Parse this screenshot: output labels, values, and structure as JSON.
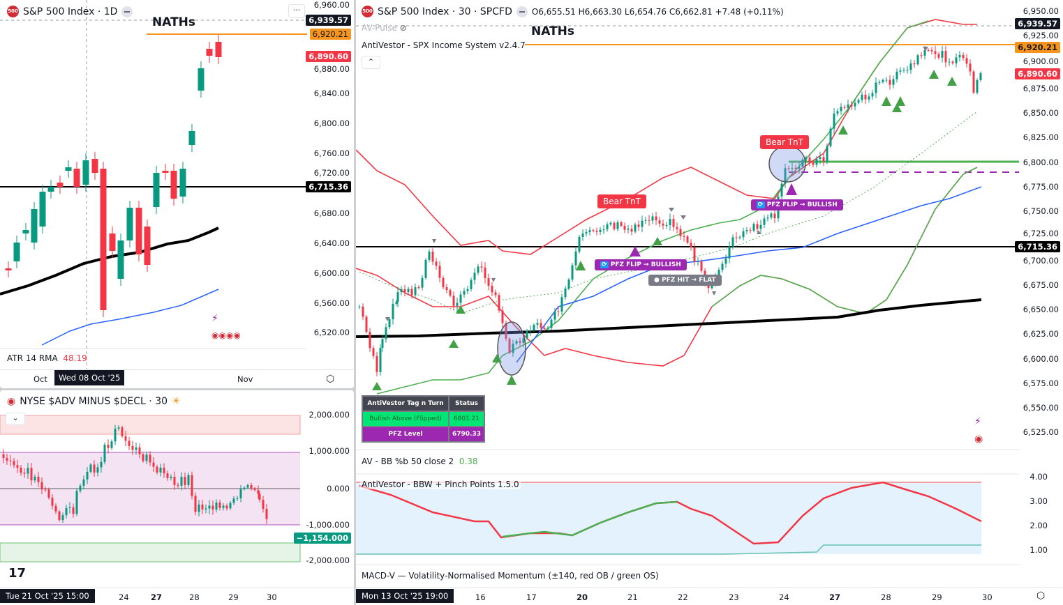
{
  "left_chart": {
    "title": "S&P 500 Index · 1D",
    "symbol_badge": "500",
    "more_label": "···",
    "naths_label": "NATHs",
    "price_axis": [
      "6,960.00",
      "6,880.00",
      "6,840.00",
      "6,800.00",
      "6,760.00",
      "6,720.00",
      "6,680.00",
      "6,640.00",
      "6,600.00",
      "6,560.00",
      "6,520.00"
    ],
    "tags": {
      "high": "6,939.57",
      "naths": "6,920.21",
      "last": "6,890.60",
      "level": "6,715.36"
    },
    "atr": {
      "label": "ATR 14 RMA",
      "value": "48.19"
    },
    "time_axis": {
      "left": "Oct",
      "cursor": "Wed 08 Oct '25",
      "right": "Nov"
    }
  },
  "breadth_chart": {
    "title": "NYSE $ADV MINUS $DECL · 30",
    "price_axis": [
      "2,000.000",
      "1,000.000",
      "0.000",
      "-1,000.000",
      "-2,000.000"
    ],
    "last_tag": "−1,154.000",
    "time_axis": {
      "cursor": "Tue 21 Oct '25  15:00",
      "ticks": [
        "24",
        "27",
        "28",
        "29",
        "30"
      ]
    }
  },
  "main_chart": {
    "title": "S&P 500 Index · 30 · SPCFD",
    "symbol_badge": "500",
    "ohlc": {
      "o": "O6,655.51",
      "h": "H6,663.30",
      "l": "L6,654.76",
      "c": "C6,662.81",
      "chg": "+7.48 (+0.11%)"
    },
    "pulse_label": "AV-Pulse",
    "indicator_label": "AntiVestor - SPX Income System v2.4.7",
    "naths_label": "NATHs",
    "price_axis": [
      "6,950.00",
      "6,925.00",
      "6,900.00",
      "6,875.00",
      "6,850.00",
      "6,825.00",
      "6,800.00",
      "6,775.00",
      "6,750.00",
      "6,725.00",
      "6,700.00",
      "6,675.00",
      "6,650.00",
      "6,625.00",
      "6,600.00",
      "6,575.00",
      "6,550.00",
      "6,525.00"
    ],
    "tags": {
      "high": "6,939.57",
      "naths": "6,920.21",
      "last": "6,890.60",
      "level": "6,715.36"
    },
    "signals": {
      "bear1": "Bear TnT",
      "bear2": "Bear TnT",
      "flip1": "PFZ FLIP → BULLISH",
      "hit": "PFZ HIT → FLAT",
      "flip2": "PFZ FLIP → BULLISH"
    },
    "table": {
      "headers": [
        "AntiVestor Tag n Turn",
        "Status"
      ],
      "rows": [
        {
          "label": "Bullish Above (Flipped)",
          "value": "6801.21"
        },
        {
          "label": "PFZ Level",
          "value": "6790.33"
        }
      ]
    },
    "colors": {
      "up": "#089981",
      "down": "#f23645",
      "naths": "#f7941d",
      "pfz": "#9c27b0",
      "green_line": "#4caf50"
    }
  },
  "bbpct": {
    "label": "AV - BB %b 50 close 2",
    "value": "0.38"
  },
  "bbw": {
    "label": "AntiVestor - BBW + Pinch Points 1.5.0",
    "axis": [
      "4.00",
      "3.00",
      "2.00",
      "1.00"
    ]
  },
  "macd": {
    "label": "MACD-V — Volatility-Normalised Momentum (±140, red OB / green OS)"
  },
  "main_time_axis": {
    "cursor": "Mon 13 Oct '25  19:00",
    "ticks": [
      "16",
      "17",
      "20",
      "21",
      "22",
      "23",
      "24",
      "27",
      "28",
      "29",
      "30"
    ]
  }
}
